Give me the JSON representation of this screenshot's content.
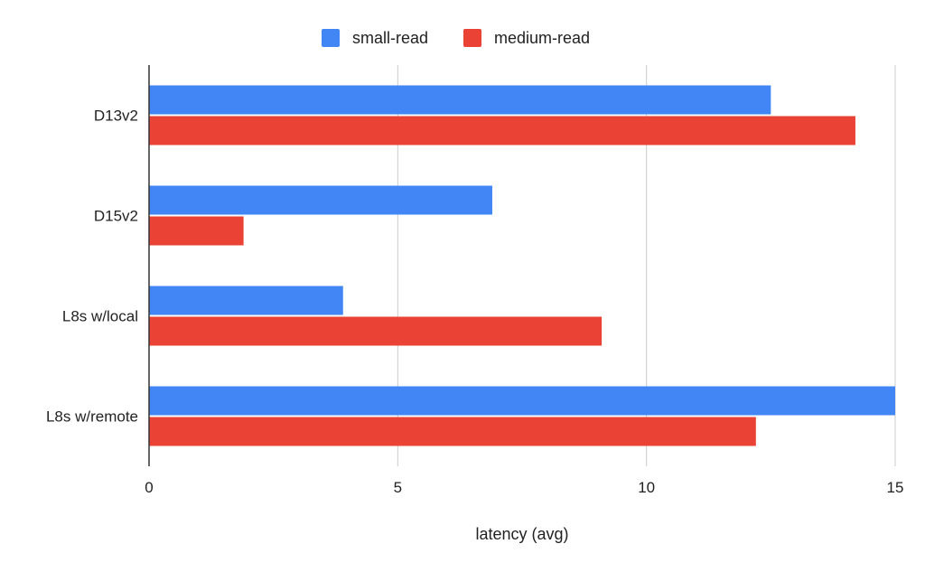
{
  "chart_data": {
    "type": "bar",
    "orientation": "horizontal",
    "categories": [
      "D13v2",
      "D15v2",
      "L8s w/local",
      "L8s w/remote"
    ],
    "series": [
      {
        "name": "small-read",
        "color": "#4285f4",
        "values": [
          12.5,
          6.9,
          3.9,
          15.0
        ]
      },
      {
        "name": "medium-read",
        "color": "#ea4335",
        "values": [
          14.2,
          1.9,
          9.1,
          12.2
        ]
      }
    ],
    "xlabel": "latency (avg)",
    "ylabel": "",
    "xlim": [
      0,
      15
    ],
    "xticks": [
      0,
      5,
      10,
      15
    ],
    "grid": true,
    "legend_position": "top"
  }
}
